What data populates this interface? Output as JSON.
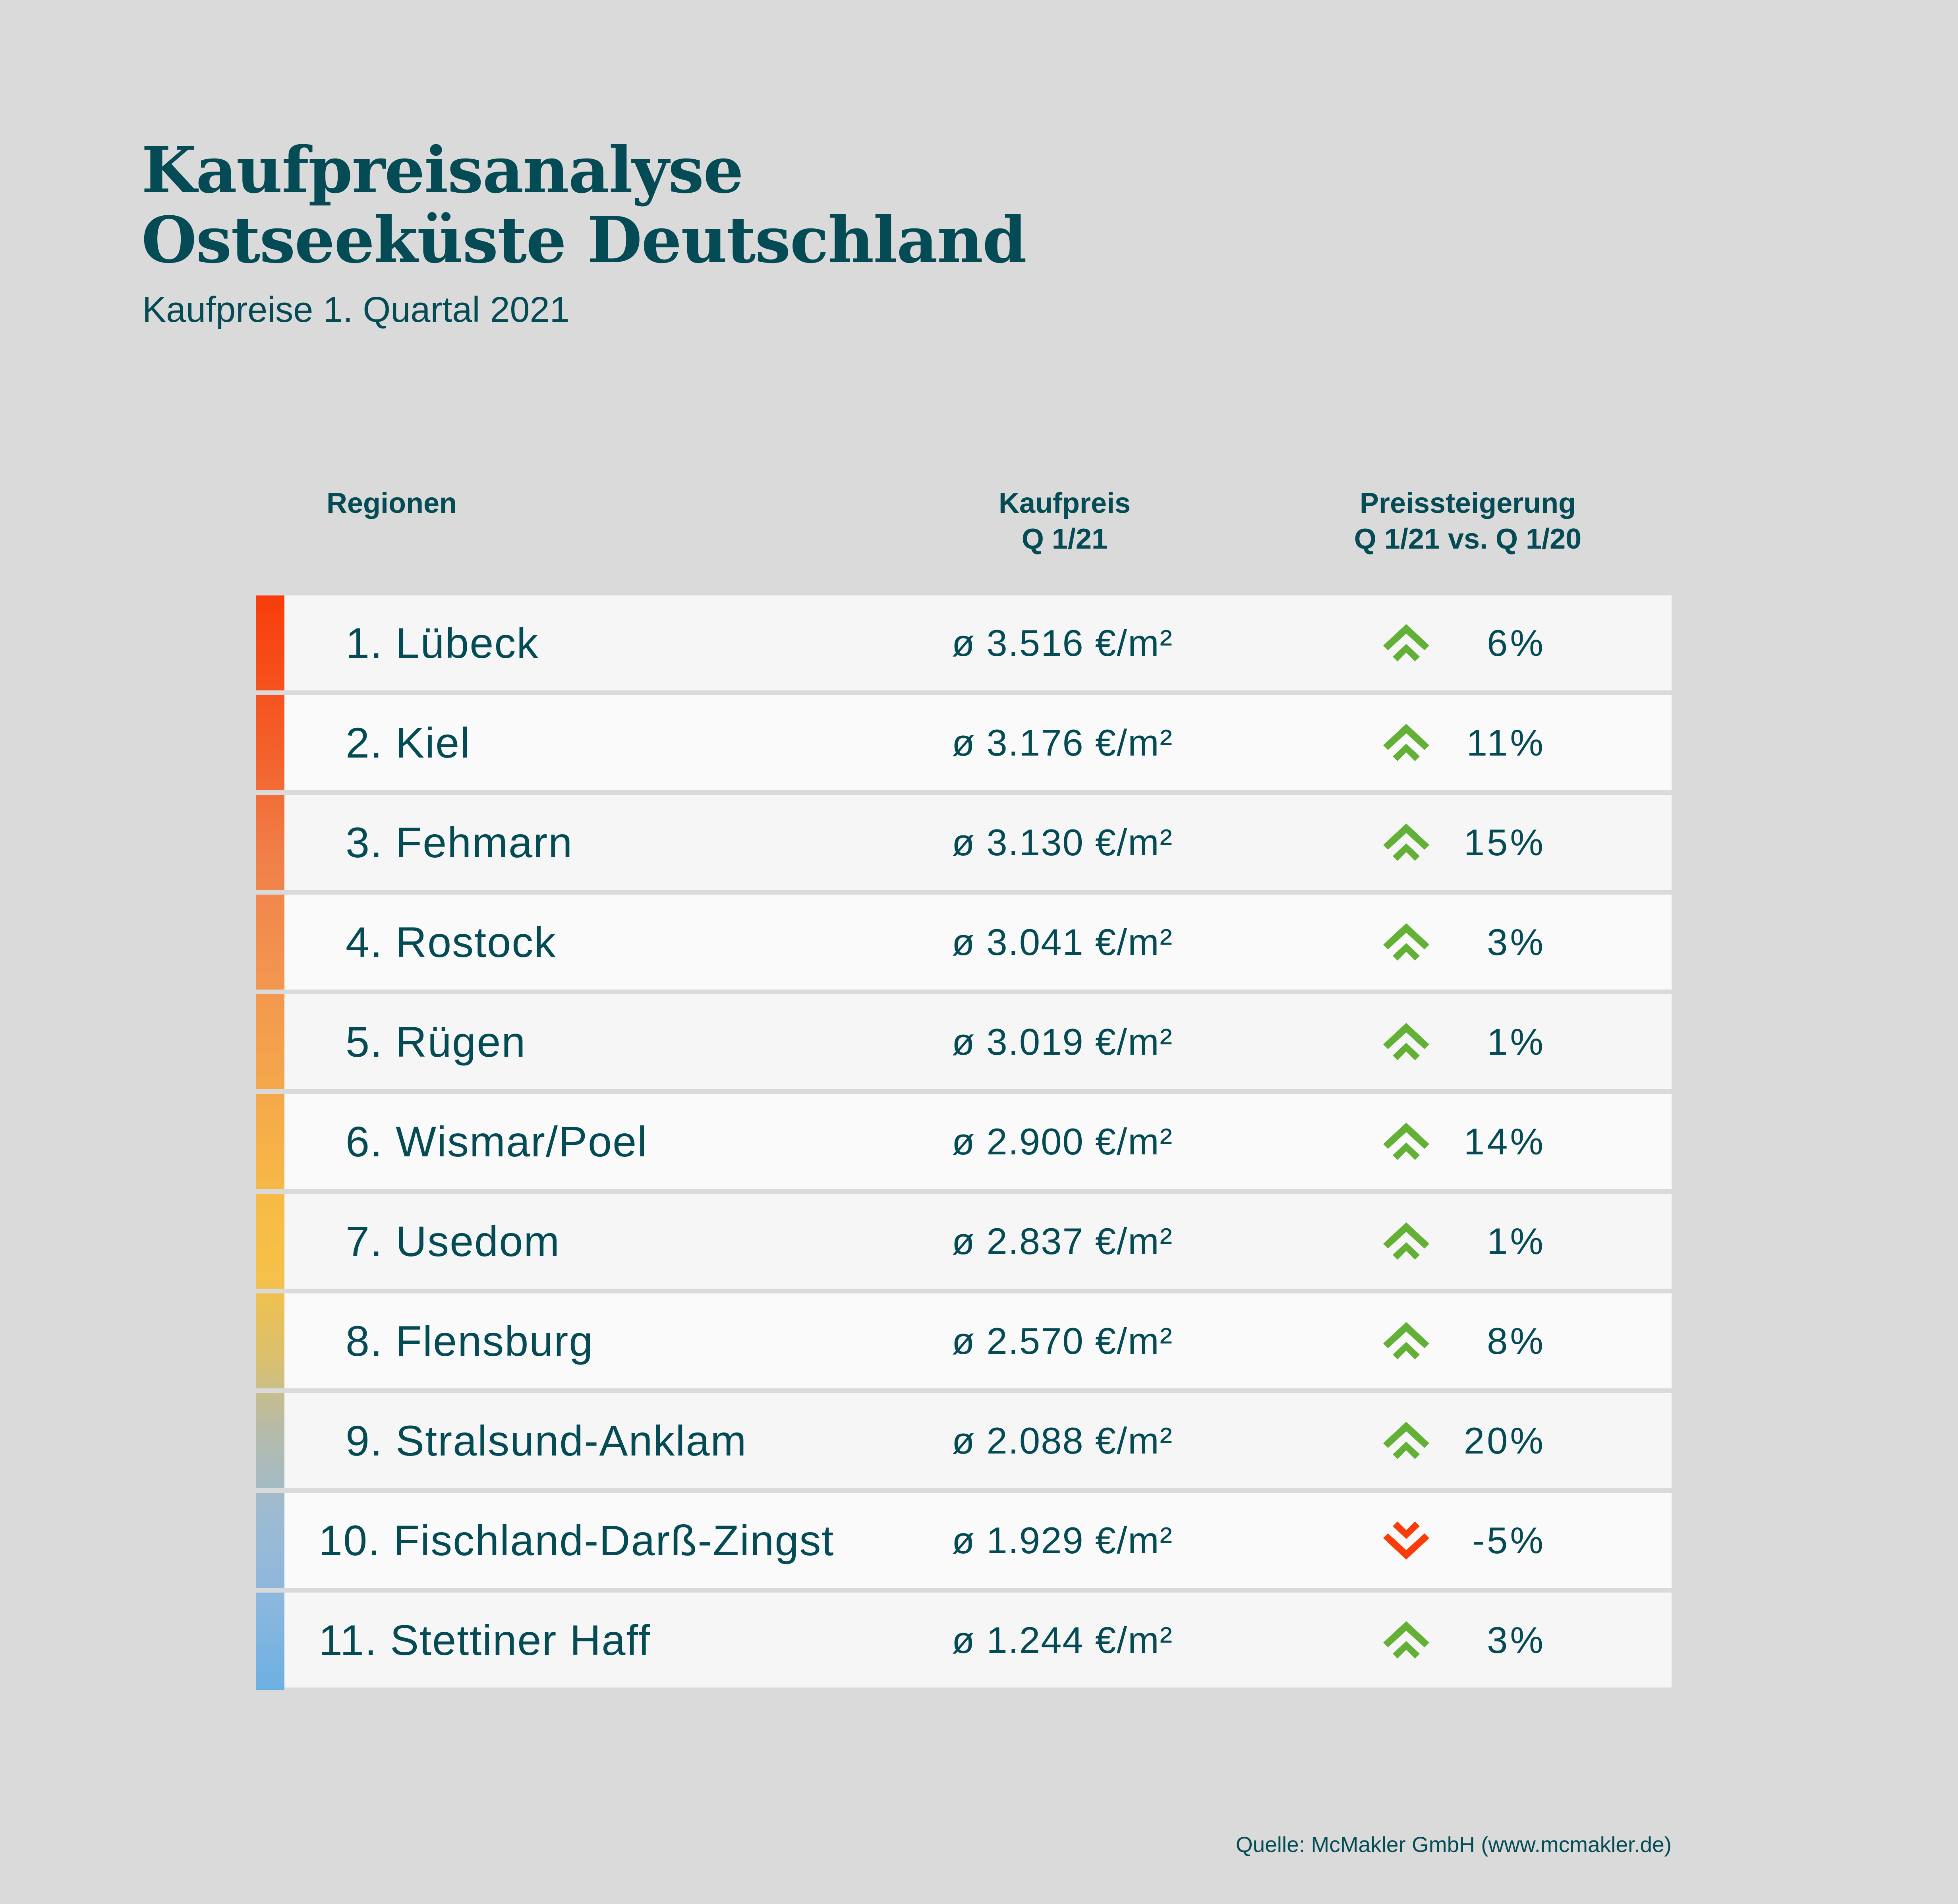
{
  "header": {
    "title_line1": "Kaufpreisanalyse",
    "title_line2": "Ostseeküste Deutschland",
    "subtitle": "Kaufpreise 1. Quartal 2021"
  },
  "columns": {
    "region": "Regionen",
    "price_line1": "Kaufpreis",
    "price_line2": "Q 1/21",
    "change_line1": "Preissteigerung",
    "change_line2": "Q 1/21 vs. Q 1/20"
  },
  "colors": {
    "text": "#044b55",
    "up": "#62b035",
    "down": "#f83d0b",
    "background": "#dadada"
  },
  "rows": [
    {
      "rank": "1.",
      "region": "Lübeck",
      "price": "ø 3.516 €/m²",
      "change": "6%",
      "direction": "up",
      "icon": "double-chevron-up-icon"
    },
    {
      "rank": "2.",
      "region": "Kiel",
      "price": "ø 3.176 €/m²",
      "change": "11%",
      "direction": "up",
      "icon": "double-chevron-up-icon"
    },
    {
      "rank": "3.",
      "region": "Fehmarn",
      "price": "ø 3.130 €/m²",
      "change": "15%",
      "direction": "up",
      "icon": "double-chevron-up-icon"
    },
    {
      "rank": "4.",
      "region": "Rostock",
      "price": "ø 3.041 €/m²",
      "change": "3%",
      "direction": "up",
      "icon": "double-chevron-up-icon"
    },
    {
      "rank": "5.",
      "region": "Rügen",
      "price": "ø 3.019 €/m²",
      "change": "1%",
      "direction": "up",
      "icon": "double-chevron-up-icon"
    },
    {
      "rank": "6.",
      "region": "Wismar/Poel",
      "price": "ø 2.900 €/m²",
      "change": "14%",
      "direction": "up",
      "icon": "double-chevron-up-icon"
    },
    {
      "rank": "7.",
      "region": "Usedom",
      "price": "ø 2.837 €/m²",
      "change": "1%",
      "direction": "up",
      "icon": "double-chevron-up-icon"
    },
    {
      "rank": "8.",
      "region": "Flensburg",
      "price": "ø 2.570 €/m²",
      "change": "8%",
      "direction": "up",
      "icon": "double-chevron-up-icon"
    },
    {
      "rank": "9.",
      "region": "Stralsund-Anklam",
      "price": "ø 2.088 €/m²",
      "change": "20%",
      "direction": "up",
      "icon": "double-chevron-up-icon"
    },
    {
      "rank": "10.",
      "region": "Fischland-Darß-Zingst",
      "price": "ø 1.929 €/m²",
      "change": "-5%",
      "direction": "down",
      "icon": "double-chevron-down-icon"
    },
    {
      "rank": "11.",
      "region": "Stettiner Haff",
      "price": "ø 1.244 €/m²",
      "change": "3%",
      "direction": "up",
      "icon": "double-chevron-up-icon"
    }
  ],
  "footer": {
    "source": "Quelle:  McMakler GmbH (www.mcmakler.de)"
  }
}
